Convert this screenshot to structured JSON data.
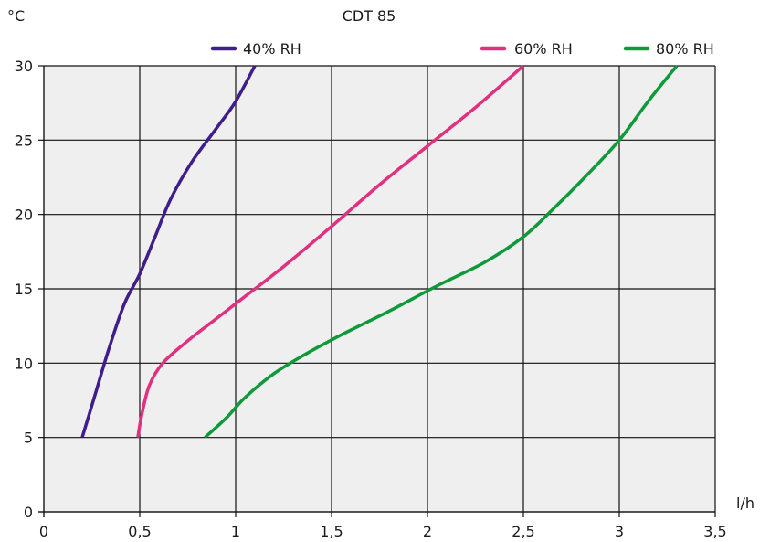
{
  "chart_data": {
    "type": "line",
    "title": "CDT 85",
    "xlabel": "l/h",
    "ylabel": "°C",
    "xlim": [
      0,
      3.5
    ],
    "ylim": [
      0,
      30
    ],
    "xticks": [
      {
        "value": 0,
        "label": "0"
      },
      {
        "value": 0.5,
        "label": "0,5"
      },
      {
        "value": 1,
        "label": "1"
      },
      {
        "value": 1.5,
        "label": "1,5"
      },
      {
        "value": 2,
        "label": "2"
      },
      {
        "value": 2.5,
        "label": "2,5"
      },
      {
        "value": 3,
        "label": "3"
      },
      {
        "value": 3.5,
        "label": "3,5"
      }
    ],
    "yticks": [
      {
        "value": 0,
        "label": "0"
      },
      {
        "value": 5,
        "label": "5"
      },
      {
        "value": 10,
        "label": "10"
      },
      {
        "value": 15,
        "label": "15"
      },
      {
        "value": 20,
        "label": "20"
      },
      {
        "value": 25,
        "label": "25"
      },
      {
        "value": 30,
        "label": "30"
      }
    ],
    "grid": true,
    "legend_position": "top",
    "series": [
      {
        "name": "40% RH",
        "color": "#3f1e8c",
        "points": [
          [
            0.2,
            5
          ],
          [
            0.27,
            8
          ],
          [
            0.34,
            11
          ],
          [
            0.42,
            14
          ],
          [
            0.5,
            16
          ],
          [
            0.58,
            18.5
          ],
          [
            0.66,
            21
          ],
          [
            0.77,
            23.5
          ],
          [
            0.9,
            25.8
          ],
          [
            1.0,
            27.6
          ],
          [
            1.1,
            30
          ]
        ]
      },
      {
        "name": "60% RH",
        "color": "#e0307f",
        "points": [
          [
            0.49,
            5
          ],
          [
            0.51,
            6.5
          ],
          [
            0.55,
            8.5
          ],
          [
            0.62,
            10
          ],
          [
            0.75,
            11.5
          ],
          [
            0.9,
            13
          ],
          [
            1.05,
            14.5
          ],
          [
            1.25,
            16.5
          ],
          [
            1.5,
            19.2
          ],
          [
            1.75,
            22
          ],
          [
            2.0,
            24.6
          ],
          [
            2.25,
            27.2
          ],
          [
            2.5,
            30
          ]
        ]
      },
      {
        "name": "80% RH",
        "color": "#0f9a3a",
        "points": [
          [
            0.84,
            5
          ],
          [
            0.95,
            6.3
          ],
          [
            1.05,
            7.7
          ],
          [
            1.2,
            9.3
          ],
          [
            1.35,
            10.5
          ],
          [
            1.55,
            11.9
          ],
          [
            1.8,
            13.5
          ],
          [
            2.05,
            15.2
          ],
          [
            2.3,
            16.8
          ],
          [
            2.5,
            18.5
          ],
          [
            2.65,
            20.3
          ],
          [
            2.82,
            22.5
          ],
          [
            3.0,
            25
          ],
          [
            3.15,
            27.6
          ],
          [
            3.3,
            30
          ]
        ]
      }
    ]
  }
}
